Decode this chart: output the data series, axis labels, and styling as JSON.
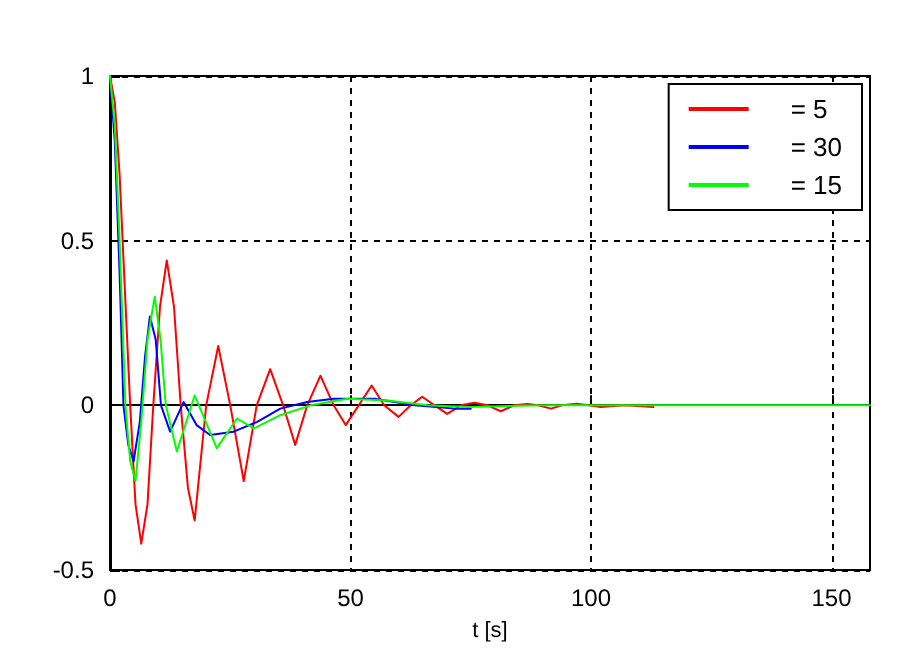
{
  "chart_data": {
    "type": "line",
    "xlabel": "t [s]",
    "xlim": [
      0,
      158
    ],
    "xticks": [
      0,
      50,
      100,
      150
    ],
    "ylim": [
      -0.5,
      1
    ],
    "yticks": [
      -0.5,
      0,
      0.5,
      1
    ],
    "grid": true,
    "legend": "top right",
    "marker": "none",
    "line_style": "solid",
    "series": [
      {
        "name": "= 5",
        "color": "#ff0000",
        "x": [
          0,
          1,
          2,
          3,
          4.2,
          5.3,
          6.5,
          7.8,
          9,
          10.4,
          11.8,
          13.3,
          14.7,
          16.2,
          17.6,
          20,
          22.5,
          25,
          27.8,
          30.5,
          33.3,
          36,
          38.5,
          41,
          43.75,
          46.5,
          49,
          51.7,
          54.4,
          57,
          60,
          62.5,
          64.9,
          67.5,
          70.1,
          73,
          75.7,
          78.5,
          81.25,
          84,
          86.8,
          89,
          91.7,
          94,
          97,
          99.5,
          102,
          107,
          113
        ],
        "values": [
          1,
          0.92,
          0.7,
          0.38,
          0,
          -0.3,
          -0.42,
          -0.3,
          0,
          0.3,
          0.44,
          0.3,
          0,
          -0.25,
          -0.35,
          0,
          0.18,
          0,
          -0.23,
          0,
          0.11,
          0,
          -0.12,
          0,
          0.09,
          0,
          -0.06,
          0,
          0.06,
          0,
          -0.035,
          0,
          0.026,
          0,
          -0.026,
          0,
          0.008,
          0,
          -0.018,
          0,
          0.004,
          0,
          -0.01,
          0,
          0.005,
          0,
          -0.005,
          0,
          -0.005
        ]
      },
      {
        "name": "= 30",
        "color": "#0000ff",
        "x": [
          0,
          1,
          2,
          2.8,
          3.8,
          4.9,
          6.2,
          7.3,
          8.3,
          9.5,
          10.6,
          12.5,
          15.3,
          18,
          20.8,
          25.7,
          30.6,
          35.4,
          41,
          46.5,
          55,
          63.3,
          71.7,
          75
        ],
        "values": [
          1,
          0.8,
          0.4,
          0,
          -0.12,
          -0.17,
          -0.05,
          0.15,
          0.27,
          0.2,
          0,
          -0.08,
          0.01,
          -0.06,
          -0.09,
          -0.08,
          -0.05,
          -0.01,
          0.01,
          0.02,
          0.02,
          0,
          -0.01,
          -0.01
        ]
      },
      {
        "name": "= 15",
        "color": "#00ff00",
        "x": [
          0,
          1,
          2,
          3.2,
          4.2,
          5.3,
          6.5,
          7.8,
          9.3,
          10.5,
          11.6,
          13.9,
          17.6,
          22.2,
          26.4,
          29.9,
          35.4,
          41.7,
          49.4,
          57.7,
          66,
          74.4,
          90,
          120,
          158
        ],
        "values": [
          1,
          0.85,
          0.5,
          0,
          -0.17,
          -0.23,
          -0.05,
          0.2,
          0.33,
          0.2,
          0,
          -0.14,
          0.03,
          -0.13,
          -0.04,
          -0.07,
          -0.03,
          0,
          0.02,
          0.015,
          0,
          -0.005,
          0,
          0,
          0
        ]
      }
    ]
  }
}
